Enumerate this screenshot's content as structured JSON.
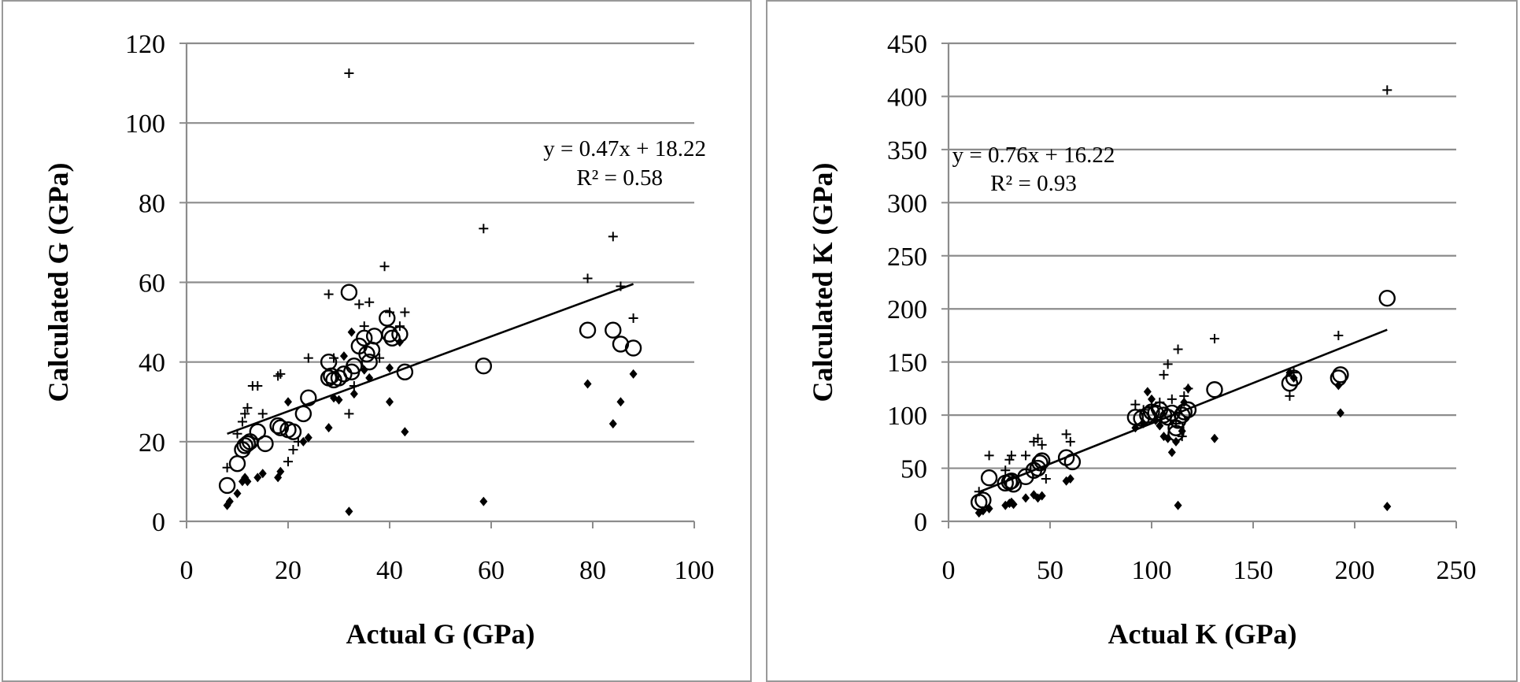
{
  "chart_data": [
    {
      "type": "scatter",
      "xlabel": "Actual G (GPa)",
      "ylabel": "Calculated G (GPa)",
      "xlim": [
        0,
        100
      ],
      "ylim": [
        0,
        120
      ],
      "xticks": [
        "0",
        "20",
        "40",
        "60",
        "80",
        "100"
      ],
      "yticks": [
        "0",
        "20",
        "40",
        "60",
        "80",
        "100",
        "120"
      ],
      "grid": "horizontal",
      "legend": "none",
      "trendline": {
        "slope": 0.47,
        "intercept": 18.22,
        "x_range": [
          8,
          88
        ],
        "equation": "y = 0.47x + 18.22",
        "r2": "R² = 0.58"
      },
      "series": [
        {
          "marker": "circle",
          "points": [
            [
              8,
              9
            ],
            [
              10,
              14.5
            ],
            [
              11,
              18
            ],
            [
              11.5,
              19
            ],
            [
              12,
              19.5
            ],
            [
              12.5,
              20
            ],
            [
              14,
              22.5
            ],
            [
              15.5,
              19.5
            ],
            [
              18,
              24
            ],
            [
              18.5,
              23.5
            ],
            [
              20,
              23
            ],
            [
              21,
              22.5
            ],
            [
              23,
              27
            ],
            [
              24,
              31
            ],
            [
              28,
              36
            ],
            [
              28.5,
              36.5
            ],
            [
              28,
              40
            ],
            [
              29,
              35.5
            ],
            [
              30,
              36
            ],
            [
              31,
              37
            ],
            [
              32,
              57.5
            ],
            [
              32.5,
              37.5
            ],
            [
              33,
              39
            ],
            [
              34,
              44
            ],
            [
              35,
              46
            ],
            [
              35.5,
              42
            ],
            [
              36,
              40
            ],
            [
              36.5,
              43
            ],
            [
              37,
              46.5
            ],
            [
              39.5,
              51
            ],
            [
              40,
              47
            ],
            [
              40.5,
              46
            ],
            [
              42,
              47
            ],
            [
              43,
              37.5
            ],
            [
              58.5,
              39
            ],
            [
              79,
              48
            ],
            [
              84,
              48
            ],
            [
              85.5,
              44.5
            ],
            [
              88,
              43.5
            ]
          ]
        },
        {
          "marker": "plus",
          "points": [
            [
              8,
              13.5
            ],
            [
              10,
              22
            ],
            [
              11,
              25
            ],
            [
              11.5,
              27
            ],
            [
              12,
              28.5
            ],
            [
              13,
              34
            ],
            [
              14,
              34
            ],
            [
              15,
              27
            ],
            [
              18,
              36.5
            ],
            [
              18.5,
              37
            ],
            [
              20,
              15
            ],
            [
              21,
              18
            ],
            [
              22,
              20
            ],
            [
              24,
              41
            ],
            [
              28,
              57
            ],
            [
              29,
              41
            ],
            [
              32,
              112.5
            ],
            [
              32,
              27
            ],
            [
              33,
              34
            ],
            [
              34,
              54.5
            ],
            [
              35,
              49
            ],
            [
              36,
              55
            ],
            [
              38,
              41
            ],
            [
              39,
              64
            ],
            [
              40,
              52.5
            ],
            [
              42,
              49
            ],
            [
              43,
              52.5
            ],
            [
              58.5,
              73.5
            ],
            [
              79,
              61
            ],
            [
              84,
              71.5
            ],
            [
              85.5,
              59
            ],
            [
              88,
              51
            ]
          ]
        },
        {
          "marker": "diamond",
          "points": [
            [
              8,
              4
            ],
            [
              8.5,
              5
            ],
            [
              10,
              7
            ],
            [
              11,
              10
            ],
            [
              11.5,
              11
            ],
            [
              12,
              10
            ],
            [
              14,
              11
            ],
            [
              15,
              12
            ],
            [
              18,
              11
            ],
            [
              18.5,
              12.5
            ],
            [
              20,
              30
            ],
            [
              23,
              20
            ],
            [
              24,
              21
            ],
            [
              28,
              23.5
            ],
            [
              29,
              31
            ],
            [
              30,
              30.5
            ],
            [
              31,
              41.5
            ],
            [
              32,
              2.5
            ],
            [
              32.5,
              47.5
            ],
            [
              33,
              32
            ],
            [
              35,
              38
            ],
            [
              36,
              36
            ],
            [
              40,
              30
            ],
            [
              40,
              38.5
            ],
            [
              42,
              45
            ],
            [
              43,
              22.5
            ],
            [
              58.5,
              5
            ],
            [
              79,
              34.5
            ],
            [
              84,
              24.5
            ],
            [
              85.5,
              30
            ],
            [
              88,
              37
            ]
          ]
        }
      ]
    },
    {
      "type": "scatter",
      "xlabel": "Actual K (GPa)",
      "ylabel": "Calculated K (GPa)",
      "xlim": [
        0,
        250
      ],
      "ylim": [
        0,
        450
      ],
      "xticks": [
        "0",
        "50",
        "100",
        "150",
        "200",
        "250"
      ],
      "yticks": [
        "0",
        "50",
        "100",
        "150",
        "200",
        "250",
        "300",
        "350",
        "400",
        "450"
      ],
      "grid": "horizontal",
      "legend": "none",
      "trendline": {
        "slope": 0.76,
        "intercept": 16.22,
        "x_range": [
          15,
          216
        ],
        "equation": "y = 0.76x + 16.22",
        "r2": "R² = 0.93"
      },
      "series": [
        {
          "marker": "circle",
          "points": [
            [
              15,
              18
            ],
            [
              17,
              20
            ],
            [
              20,
              41
            ],
            [
              28,
              36
            ],
            [
              30,
              37
            ],
            [
              31,
              38
            ],
            [
              32,
              35
            ],
            [
              38,
              42
            ],
            [
              42,
              48
            ],
            [
              44,
              50
            ],
            [
              45,
              55
            ],
            [
              46,
              57
            ],
            [
              58,
              60
            ],
            [
              61,
              56
            ],
            [
              92,
              98
            ],
            [
              95,
              97
            ],
            [
              98,
              100
            ],
            [
              100,
              103
            ],
            [
              102,
              102
            ],
            [
              104,
              105
            ],
            [
              106,
              100
            ],
            [
              108,
              98
            ],
            [
              110,
              102
            ],
            [
              112,
              88
            ],
            [
              112,
              83
            ],
            [
              113,
              95
            ],
            [
              115,
              100
            ],
            [
              116,
              103
            ],
            [
              118,
              105
            ],
            [
              131,
              124
            ],
            [
              168,
              130
            ],
            [
              170,
              135
            ],
            [
              192,
              135
            ],
            [
              193,
              138
            ],
            [
              216,
              210
            ]
          ]
        },
        {
          "marker": "plus",
          "points": [
            [
              15,
              28
            ],
            [
              20,
              62
            ],
            [
              28,
              48
            ],
            [
              30,
              58
            ],
            [
              31,
              62
            ],
            [
              38,
              62
            ],
            [
              42,
              75
            ],
            [
              44,
              78
            ],
            [
              46,
              72
            ],
            [
              48,
              40
            ],
            [
              58,
              82
            ],
            [
              60,
              75
            ],
            [
              92,
              110
            ],
            [
              96,
              105
            ],
            [
              100,
              108
            ],
            [
              104,
              112
            ],
            [
              106,
              138
            ],
            [
              108,
              148
            ],
            [
              110,
              115
            ],
            [
              112,
              92
            ],
            [
              113,
              162
            ],
            [
              115,
              80
            ],
            [
              116,
              118
            ],
            [
              118,
              125
            ],
            [
              131,
              172
            ],
            [
              168,
              118
            ],
            [
              170,
              140
            ],
            [
              192,
              175
            ],
            [
              216,
              406
            ]
          ]
        },
        {
          "marker": "diamond",
          "points": [
            [
              15,
              8
            ],
            [
              17,
              10
            ],
            [
              20,
              12
            ],
            [
              28,
              15
            ],
            [
              30,
              17
            ],
            [
              31,
              18
            ],
            [
              32,
              16
            ],
            [
              38,
              22
            ],
            [
              42,
              25
            ],
            [
              44,
              22
            ],
            [
              46,
              24
            ],
            [
              58,
              38
            ],
            [
              60,
              40
            ],
            [
              92,
              88
            ],
            [
              96,
              92
            ],
            [
              98,
              122
            ],
            [
              100,
              115
            ],
            [
              102,
              95
            ],
            [
              104,
              90
            ],
            [
              106,
              80
            ],
            [
              108,
              78
            ],
            [
              110,
              65
            ],
            [
              112,
              75
            ],
            [
              113,
              15
            ],
            [
              115,
              85
            ],
            [
              116,
              112
            ],
            [
              118,
              125
            ],
            [
              131,
              78
            ],
            [
              168,
              140
            ],
            [
              170,
              135
            ],
            [
              192,
              128
            ],
            [
              193,
              102
            ],
            [
              216,
              14
            ]
          ]
        }
      ]
    }
  ]
}
